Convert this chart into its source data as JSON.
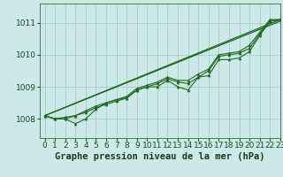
{
  "background_color": "#cce8e8",
  "grid_color": "#aacccc",
  "line_color": "#1a6b1a",
  "title": "Graphe pression niveau de la mer (hPa)",
  "xlim": [
    -0.5,
    23
  ],
  "ylim": [
    1007.4,
    1011.6
  ],
  "yticks": [
    1008,
    1009,
    1010,
    1011
  ],
  "xticks": [
    0,
    1,
    2,
    3,
    4,
    5,
    6,
    7,
    8,
    9,
    10,
    11,
    12,
    13,
    14,
    15,
    16,
    17,
    18,
    19,
    20,
    21,
    22,
    23
  ],
  "line1": [
    1008.1,
    1008.0,
    1008.0,
    1007.85,
    1008.0,
    1008.3,
    1008.5,
    1008.6,
    1008.65,
    1008.9,
    1009.0,
    1009.0,
    1009.2,
    1009.0,
    1008.9,
    1009.3,
    1009.35,
    1009.85,
    1009.85,
    1009.9,
    1010.1,
    1010.6,
    1011.05,
    1011.1
  ],
  "line2": [
    1008.1,
    1008.0,
    1008.0,
    1008.1,
    1008.2,
    1008.35,
    1008.45,
    1008.55,
    1008.65,
    1008.9,
    1009.0,
    1009.1,
    1009.25,
    1009.15,
    1009.1,
    1009.3,
    1009.5,
    1009.95,
    1010.0,
    1010.05,
    1010.2,
    1010.65,
    1011.05,
    1011.1
  ],
  "line3": [
    1008.1,
    1008.0,
    1008.05,
    1008.1,
    1008.25,
    1008.4,
    1008.5,
    1008.6,
    1008.7,
    1008.95,
    1009.05,
    1009.15,
    1009.3,
    1009.2,
    1009.2,
    1009.4,
    1009.55,
    1010.0,
    1010.05,
    1010.1,
    1010.3,
    1010.7,
    1011.1,
    1011.1
  ],
  "title_fontsize": 7.5,
  "tick_fontsize": 6.5,
  "figsize": [
    3.2,
    2.0
  ],
  "dpi": 100
}
